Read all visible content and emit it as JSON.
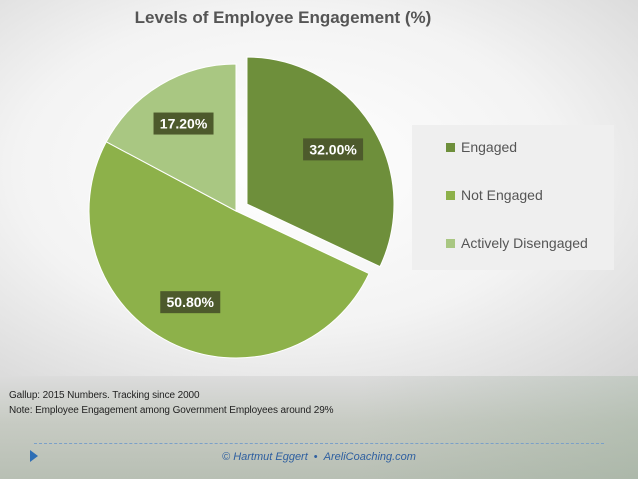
{
  "chart_data": {
    "type": "pie",
    "title": "Levels of Employee Engagement (%)",
    "slices": [
      {
        "name": "Engaged",
        "value": 32.0,
        "label": "32.00%",
        "color": "#6e8f3b",
        "exploded": true
      },
      {
        "name": "Not Engaged",
        "value": 50.8,
        "label": "50.80%",
        "color": "#8db14a"
      },
      {
        "name": "Actively Disengaged",
        "value": 17.2,
        "label": "17.20%",
        "color": "#a9c782"
      }
    ],
    "legend_position": "right"
  },
  "notes": {
    "line1": "Gallup: 2015 Numbers. Tracking since 2000",
    "line2": "Note: Employee Engagement among Government Employees around 29%"
  },
  "footer": {
    "author": "© Hartmut Eggert",
    "separator": "•",
    "site": "AreliCoaching.com"
  },
  "colors": {
    "label_box": "#4d5a2c",
    "footer_text": "#2e5fa0"
  }
}
